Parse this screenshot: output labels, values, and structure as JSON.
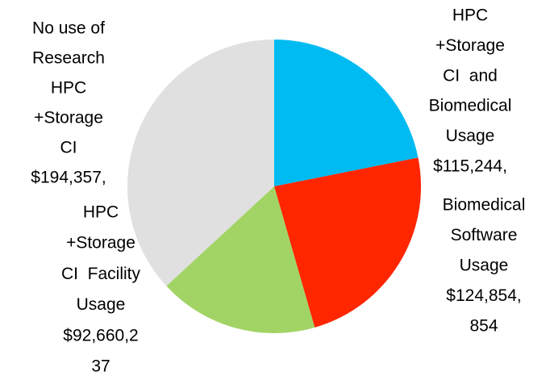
{
  "chart_data": {
    "type": "pie",
    "categories": [
      [
        "HPC",
        "+Storage",
        "CI  and",
        "Biomedical",
        "Usage"
      ],
      [
        "Biomedical",
        "Software",
        "Usage"
      ],
      [
        "HPC",
        "+Storage",
        "CI  Facility",
        "Usage"
      ],
      [
        "No use of",
        "Research",
        "HPC",
        "+Storage",
        "CI"
      ]
    ],
    "values": [
      115244000,
      124854854,
      92660237,
      194357000
    ],
    "value_labels": [
      [
        "$115,244,"
      ],
      [
        "$124,854,",
        "854"
      ],
      [
        "$92,660,2",
        "37"
      ],
      [
        "$194,357,"
      ]
    ],
    "colors": [
      "#00bbf2",
      "#ff2600",
      "#a2d465",
      "#e0e0e0"
    ]
  }
}
